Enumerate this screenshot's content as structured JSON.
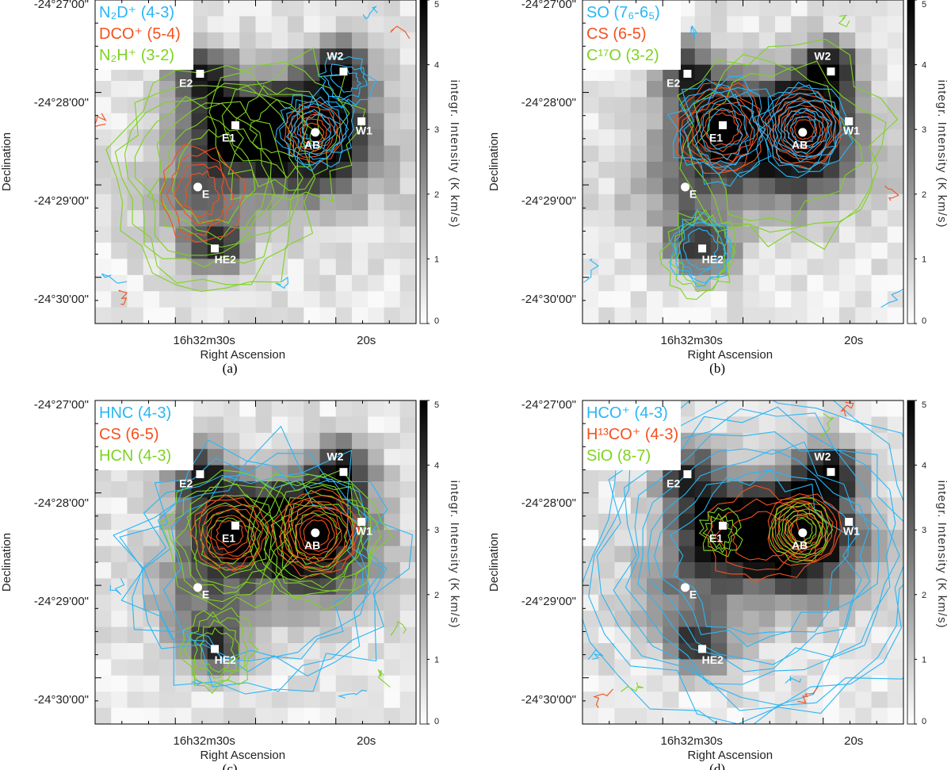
{
  "colors": {
    "contour1": "#29b6f6",
    "contour2": "#f4511e",
    "contour3": "#7ed321",
    "marker": "#ffffff"
  },
  "shared": {
    "ylabel": "Declination",
    "xlabel": "Right Ascension",
    "colorbar_label": "integr. Intensity (K km/s)",
    "colorbar_ticks": [
      "0",
      "1",
      "2",
      "3",
      "4",
      "5"
    ],
    "dec_ticks": [
      "-24°27'00\"",
      "-24°28'00\"",
      "-24°29'00\"",
      "-24°30'00\""
    ],
    "ra_ticks": [
      "16h32m30s",
      "20s"
    ]
  },
  "chart_data": [
    {
      "type": "heatmap",
      "panel": "(a)",
      "legend": [
        {
          "label": "N₂D⁺ (4-3)",
          "color": "#29b6f6"
        },
        {
          "label": "DCO⁺ (5-4)",
          "color": "#f4511e"
        },
        {
          "label": "N₂H⁺ (3-2)",
          "color": "#7ed321"
        }
      ],
      "sources": [
        "E2",
        "E1",
        "W2",
        "W1",
        "AB",
        "E",
        "HE2"
      ],
      "colorbar_range": [
        0,
        5
      ]
    },
    {
      "type": "heatmap",
      "panel": "(b)",
      "legend": [
        {
          "label": "SO (7₆-6₅)",
          "color": "#29b6f6"
        },
        {
          "label": "CS (6-5)",
          "color": "#f4511e"
        },
        {
          "label": "C¹⁷O (3-2)",
          "color": "#7ed321"
        }
      ],
      "sources": [
        "E2",
        "E1",
        "W2",
        "W1",
        "AB",
        "E",
        "HE2"
      ],
      "colorbar_range": [
        0,
        5
      ]
    },
    {
      "type": "heatmap",
      "panel": "(c)",
      "legend": [
        {
          "label": "HNC (4-3)",
          "color": "#29b6f6"
        },
        {
          "label": "CS (6-5)",
          "color": "#f4511e"
        },
        {
          "label": "HCN (4-3)",
          "color": "#7ed321"
        }
      ],
      "sources": [
        "E2",
        "E1",
        "W2",
        "W1",
        "AB",
        "E",
        "HE2"
      ],
      "colorbar_range": [
        0,
        5
      ]
    },
    {
      "type": "heatmap",
      "panel": "(d)",
      "legend": [
        {
          "label": "HCO⁺ (4-3)",
          "color": "#29b6f6"
        },
        {
          "label": "H¹³CO⁺ (4-3)",
          "color": "#f4511e"
        },
        {
          "label": "SiO (8-7)",
          "color": "#7ed321"
        }
      ],
      "sources": [
        "E2",
        "E1",
        "W2",
        "W1",
        "AB",
        "E",
        "HE2"
      ],
      "colorbar_range": [
        0,
        5
      ]
    }
  ]
}
